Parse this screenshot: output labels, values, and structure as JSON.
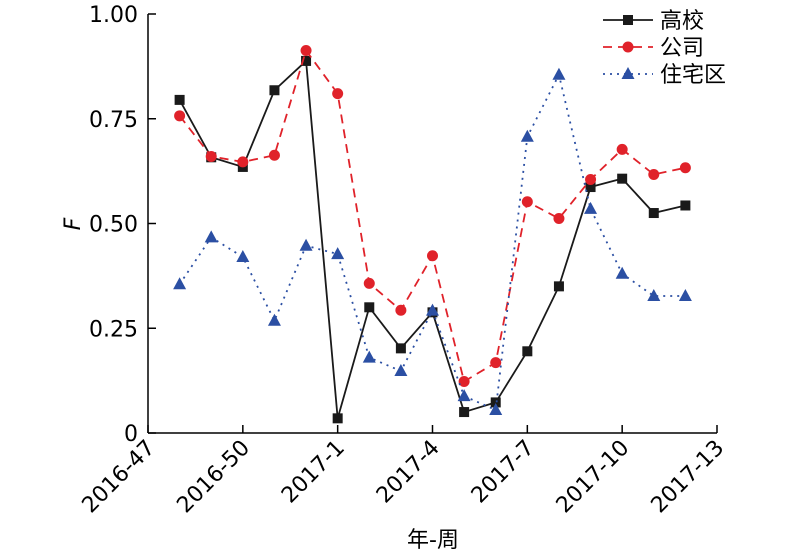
{
  "chart_data": {
    "type": "line",
    "xlabel": "年-周",
    "ylabel": "F",
    "ylim": [
      0,
      1
    ],
    "xlim": [
      0,
      18
    ],
    "yticks": [
      0,
      0.25,
      0.5,
      0.75,
      1.0
    ],
    "ytick_labels": [
      "0",
      "0.25",
      "0.50",
      "0.75",
      "1.00"
    ],
    "xticks": [
      0,
      3,
      6,
      9,
      12,
      15,
      18
    ],
    "xtick_labels": [
      "2016-47",
      "2016-50",
      "2017-1",
      "2017-4",
      "2017-7",
      "2017-10",
      "2017-13"
    ],
    "x": [
      1,
      2,
      3,
      4,
      5,
      6,
      7,
      8,
      9,
      10,
      11,
      12,
      13,
      14,
      15,
      16,
      17
    ],
    "legend_position": "top-right",
    "grid": false,
    "series": [
      {
        "name": "高校",
        "color": "#1a1a1a",
        "dash": "solid",
        "marker": "square",
        "values": [
          0.795,
          0.658,
          0.635,
          0.818,
          0.888,
          0.035,
          0.3,
          0.202,
          0.288,
          0.05,
          0.073,
          0.195,
          0.35,
          0.587,
          0.607,
          0.525,
          0.543
        ]
      },
      {
        "name": "公司",
        "color": "#e0222a",
        "dash": "dashed",
        "marker": "circle",
        "values": [
          0.757,
          0.66,
          0.647,
          0.663,
          0.913,
          0.81,
          0.357,
          0.293,
          0.423,
          0.123,
          0.168,
          0.552,
          0.512,
          0.605,
          0.677,
          0.617,
          0.633
        ]
      },
      {
        "name": "住宅区",
        "color": "#2b4fa3",
        "dash": "dotted",
        "marker": "triangle",
        "values": [
          0.355,
          0.467,
          0.42,
          0.268,
          0.447,
          0.427,
          0.18,
          0.148,
          0.292,
          0.088,
          0.055,
          0.707,
          0.855,
          0.535,
          0.38,
          0.327,
          0.327
        ]
      }
    ]
  }
}
